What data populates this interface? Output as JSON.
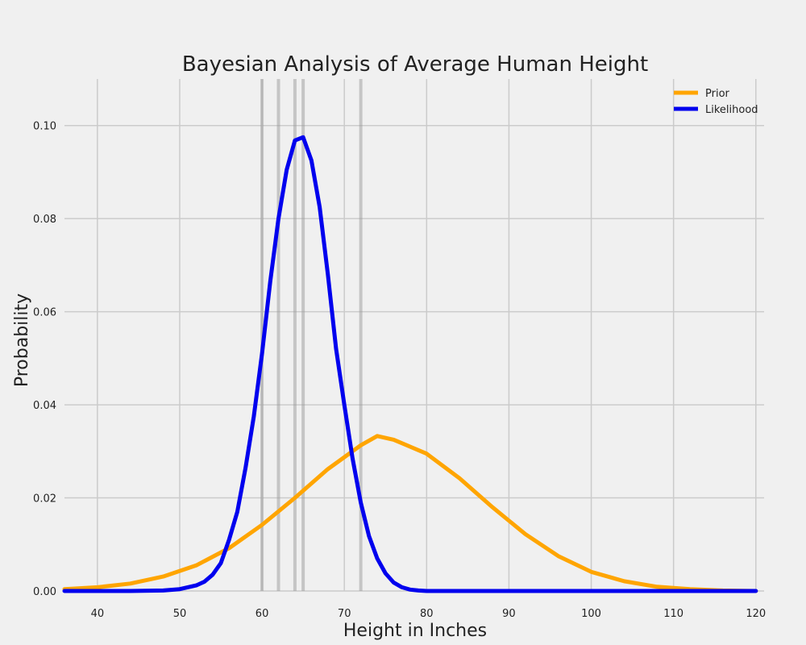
{
  "chart_data": {
    "type": "line",
    "title": "Bayesian Analysis of Average Human Height",
    "xlabel": "Height in Inches",
    "ylabel": "Probability",
    "xlim": [
      36,
      121
    ],
    "ylim": [
      0,
      0.11
    ],
    "xticks": [
      40,
      50,
      60,
      70,
      80,
      90,
      100,
      110,
      120
    ],
    "yticks": [
      0.0,
      0.02,
      0.04,
      0.06,
      0.08,
      0.1
    ],
    "ytick_labels": [
      "0.00",
      "0.02",
      "0.04",
      "0.06",
      "0.08",
      "0.10"
    ],
    "grid": true,
    "legend_position": "top-right",
    "observations": [
      60,
      62,
      64,
      65,
      72
    ],
    "series": [
      {
        "name": "Prior",
        "color": "#ffa500",
        "x": [
          36,
          40,
          44,
          48,
          52,
          56,
          60,
          64,
          68,
          72,
          74,
          76,
          80,
          84,
          88,
          92,
          96,
          100,
          104,
          108,
          112,
          116,
          120
        ],
        "y": [
          0.0004,
          0.0008,
          0.0016,
          0.0031,
          0.0055,
          0.0092,
          0.0142,
          0.02,
          0.0262,
          0.0313,
          0.0333,
          0.0325,
          0.0295,
          0.0242,
          0.018,
          0.0122,
          0.0075,
          0.0041,
          0.0021,
          0.0009,
          0.0004,
          0.0001,
          0.0
        ]
      },
      {
        "name": "Likelihood",
        "color": "#0000ee",
        "x": [
          36,
          40,
          44,
          48,
          50,
          52,
          53,
          54,
          55,
          56,
          57,
          58,
          59,
          60,
          61,
          62,
          63,
          64,
          65,
          66,
          67,
          68,
          69,
          70,
          71,
          72,
          73,
          74,
          75,
          76,
          77,
          78,
          79,
          80,
          84,
          90,
          100,
          110,
          120
        ],
        "y": [
          0,
          0,
          0,
          0.0001,
          0.0004,
          0.0012,
          0.002,
          0.0035,
          0.006,
          0.011,
          0.017,
          0.0265,
          0.0375,
          0.051,
          0.0665,
          0.08,
          0.0905,
          0.0968,
          0.0975,
          0.0925,
          0.0825,
          0.068,
          0.052,
          0.04,
          0.0285,
          0.019,
          0.0118,
          0.007,
          0.0038,
          0.0018,
          0.0008,
          0.0003,
          0.0001,
          0,
          0,
          0,
          0,
          0,
          0
        ]
      }
    ]
  }
}
